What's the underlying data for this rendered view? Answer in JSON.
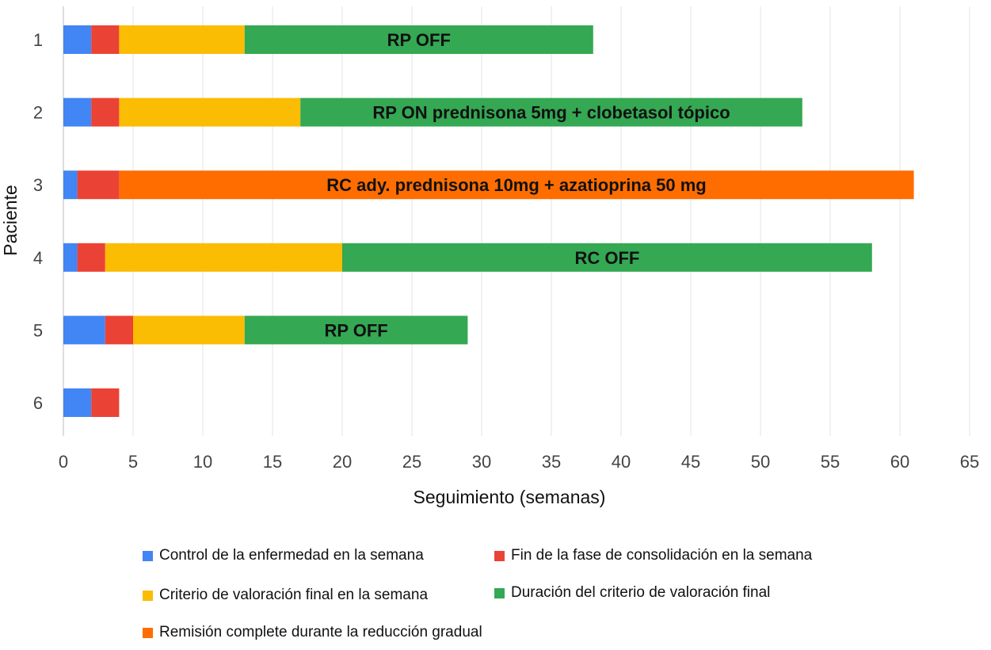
{
  "chart_data": {
    "type": "bar",
    "orientation": "horizontal",
    "stacked": true,
    "ylabel": "Paciente",
    "xlabel": "Seguimiento (semanas)",
    "categories": [
      "1",
      "2",
      "3",
      "4",
      "5",
      "6"
    ],
    "xlim": [
      0,
      65
    ],
    "xticks": [
      "0",
      "5",
      "10",
      "15",
      "20",
      "25",
      "30",
      "35",
      "40",
      "45",
      "50",
      "55",
      "60",
      "65"
    ],
    "grid": true,
    "legend_position": "bottom",
    "series": [
      {
        "name": "Control de la enfermedad en la semana",
        "color": "#4285f4",
        "values": [
          2,
          2,
          1,
          1,
          3,
          2
        ]
      },
      {
        "name": "Fin de la fase de consolidación en la semana",
        "color": "#ea4335",
        "values": [
          2,
          2,
          3,
          2,
          2,
          2
        ]
      },
      {
        "name": "Criterio de valoración final en la semana",
        "color": "#fbbc04",
        "values": [
          9,
          13,
          0,
          17,
          8,
          0
        ]
      },
      {
        "name": "Duración del criterio de valoración final",
        "color": "#34a853",
        "values": [
          25,
          36,
          0,
          38,
          16,
          0
        ]
      },
      {
        "name": "Remisión complete durante la reducción gradual",
        "color": "#ff6d01",
        "values": [
          0,
          0,
          57,
          0,
          0,
          0
        ]
      }
    ],
    "bar_labels": [
      "RP OFF",
      "RP ON prednisona 5mg + clobetasol tópico",
      "RC ady. prednisona 10mg + azatioprina 50 mg",
      "RC OFF",
      "RP OFF",
      ""
    ]
  }
}
